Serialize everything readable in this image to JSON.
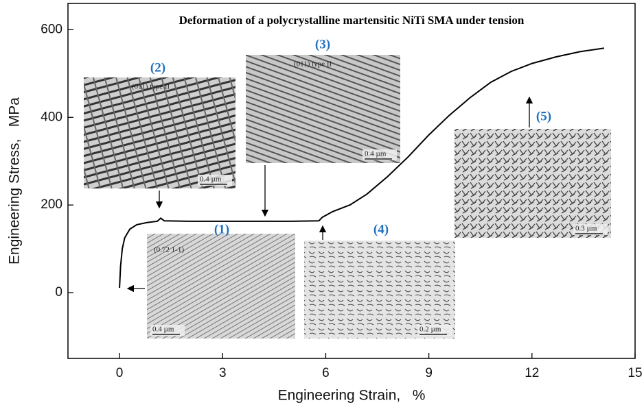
{
  "chart_data": {
    "type": "line",
    "title": "Deformation of a polycrystalline martensitic NiTi SMA under tension",
    "x_label": "Engineering Strain,   %",
    "y_label": "Engineering Stress,   MPa",
    "x": [
      0,
      0.03,
      0.08,
      0.15,
      0.3,
      0.5,
      0.8,
      1.1,
      1.2,
      1.3,
      2,
      3,
      4,
      5,
      5.8,
      5.9,
      6.2,
      6.7,
      7.2,
      7.8,
      8.4,
      9,
      9.6,
      10.2,
      10.8,
      11.4,
      12,
      12.7,
      13.4,
      14.1
    ],
    "series": [
      {
        "name": "Stress-strain curve",
        "color": "#000000",
        "values": [
          11,
          60,
          100,
          125,
          145,
          155,
          160,
          163,
          170,
          164,
          163,
          163,
          163,
          163,
          164,
          172,
          185,
          200,
          225,
          265,
          310,
          360,
          405,
          445,
          480,
          505,
          523,
          538,
          550,
          558
        ]
      }
    ],
    "xlim": [
      -1.5,
      15
    ],
    "xticks": [
      0,
      3,
      6,
      9,
      12,
      15
    ],
    "ylim": [
      -150,
      660
    ],
    "yticks": [
      0,
      200,
      400,
      600
    ],
    "insets": [
      {
        "label": "(1)",
        "scale": "0.4 µm",
        "note": "(0.72 1-1)"
      },
      {
        "label": "(2)",
        "scale": "0.4 µm",
        "note": "(011) type II"
      },
      {
        "label": "(3)",
        "scale": "0.4 µm",
        "note": "(011) type II"
      },
      {
        "label": "(4)",
        "scale": "0.2 µm"
      },
      {
        "label": "(5)",
        "scale": "0.3 µm"
      }
    ]
  }
}
